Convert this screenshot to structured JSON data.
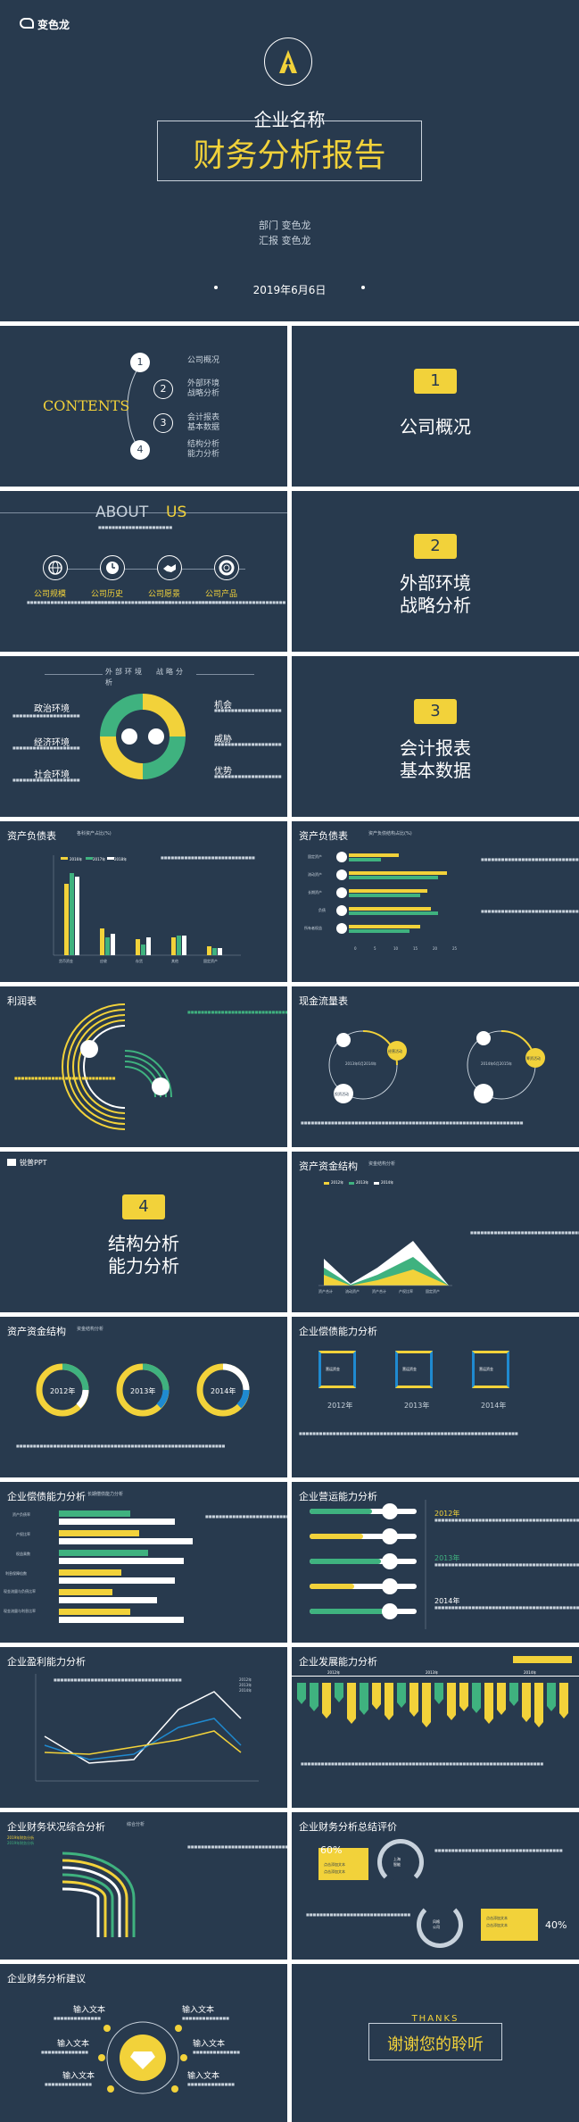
{
  "colors": {
    "bg": "#283a4e",
    "accent": "#f2d23a",
    "green": "#3fb27f",
    "blue": "#1f8ad0",
    "white": "#ffffff"
  },
  "cover": {
    "logo_text": "变色龙",
    "company": "企业名称",
    "title": "财务分析报告",
    "dept": "部门   变色龙",
    "reporter": "汇报   变色龙",
    "date": "2019年6月6日"
  },
  "contents": {
    "title": "CONTENTS",
    "items": [
      {
        "num": "1",
        "label": "公司概况"
      },
      {
        "num": "2",
        "label": "外部环境战略分析"
      },
      {
        "num": "3",
        "label": "会计报表基本数据"
      },
      {
        "num": "4",
        "label": "结构分析能力分析"
      }
    ]
  },
  "sections": [
    {
      "num": "1",
      "title_1": "公司概况",
      "title_2": ""
    },
    {
      "num": "2",
      "title_1": "外部环境",
      "title_2": "战略分析"
    },
    {
      "num": "3",
      "title_1": "会计报表",
      "title_2": "基本数据"
    },
    {
      "num": "4",
      "title_1": "结构分析",
      "title_2": "能力分析"
    }
  ],
  "about": {
    "title_a": "ABOUT",
    "title_b": "US",
    "items": [
      {
        "label": "公司规模",
        "icon": "globe-icon"
      },
      {
        "label": "公司历史",
        "icon": "clock-icon"
      },
      {
        "label": "公司愿景",
        "icon": "handshake-icon"
      },
      {
        "label": "公司产品",
        "icon": "lifebuoy-icon"
      }
    ]
  },
  "environment": {
    "header_left": "外部环境",
    "header_right": "战略分",
    "header_right_2": "析",
    "left": [
      "政治环境",
      "经济环境",
      "社会环境"
    ],
    "right": [
      "机会",
      "威胁",
      "优势"
    ]
  },
  "assets_debt": {
    "title": "资产负债表",
    "subtitle": "各科资产占比(%)",
    "legend": [
      "2016年",
      "2017年",
      "2018年"
    ],
    "categories": [
      "货币资金",
      "应收",
      "存货",
      "其他",
      "固定资产"
    ]
  },
  "assets_debt_2": {
    "title": "资产负债表",
    "subtitle": "资产负债结构占比(%)",
    "rows": [
      "固定资产",
      "流动资产",
      "长期资产",
      "负债",
      "所有者权益"
    ],
    "ticks": [
      "0",
      "5",
      "10",
      "15",
      "20",
      "25"
    ]
  },
  "profit": {
    "title": "利润表"
  },
  "cashflow": {
    "title": "现金流量表",
    "circle_1": "2013年6月2014年",
    "circle_2": "2014年6月2015年",
    "labels": [
      "经营活动",
      "投资活动",
      "筹资活动"
    ]
  },
  "logo_slide": {
    "brand": "锐普PPT"
  },
  "asset_structure": {
    "title": "资产资金结构",
    "subtitle": "资金结构分析",
    "legend": [
      "2012年",
      "2013年",
      "2014年"
    ],
    "categories": [
      "资产合计",
      "流动资产",
      "资产合计",
      "产权比率",
      "固定资产"
    ]
  },
  "asset_structure_2": {
    "title": "资产资金结构",
    "subtitle": "资金结构分析",
    "years": [
      "2012年",
      "2013年",
      "2014年"
    ]
  },
  "solvency": {
    "title": "企业偿债能力分析",
    "subtitle": "偿债能力分析",
    "cards": [
      "营运资金",
      "营运资金",
      "营运资金"
    ],
    "years": [
      "2012年",
      "2013年",
      "2014年"
    ]
  },
  "solvency_2": {
    "title": "企业偿债能力分析",
    "subtitle": "长期偿债能力分析",
    "rows": [
      "资产负债率",
      "产权比率",
      "权益乘数",
      "利息保障倍数",
      "现金流量与负债比率",
      "现金流量与利息比率"
    ]
  },
  "operation": {
    "title": "企业营运能力分析",
    "years": [
      "2012年",
      "2013年",
      "2014年"
    ]
  },
  "profitability": {
    "title": "企业盈利能力分析",
    "legend": [
      "2012年",
      "2013年",
      "2014年"
    ]
  },
  "development": {
    "title": "企业发展能力分析",
    "years": [
      "2012年",
      "2013年",
      "2014年"
    ]
  },
  "overall": {
    "title": "企业财务状况综合分析",
    "subtitle": "综合分析",
    "years": [
      "2019年财务分析",
      "2019年财务分析"
    ]
  },
  "summary": {
    "title": "企业财务分析总结评价",
    "pct_1": "60%",
    "pct_2": "40%",
    "circle_1": "上海",
    "circle_1b": "智能",
    "circle_2": "风格",
    "circle_2b": "公司",
    "box_1": "点击添加文本",
    "box_1b": "点击添加文本",
    "box_2": "点击添加文本",
    "box_2b": "点击添加文本"
  },
  "suggestions": {
    "title": "企业财务分析建议",
    "items": [
      "输入文本",
      "输入文本",
      "输入文本",
      "输入文本",
      "输入文本",
      "输入文本"
    ]
  },
  "thanks": {
    "en": "THANKS",
    "cn": "谢谢您的聆听"
  }
}
